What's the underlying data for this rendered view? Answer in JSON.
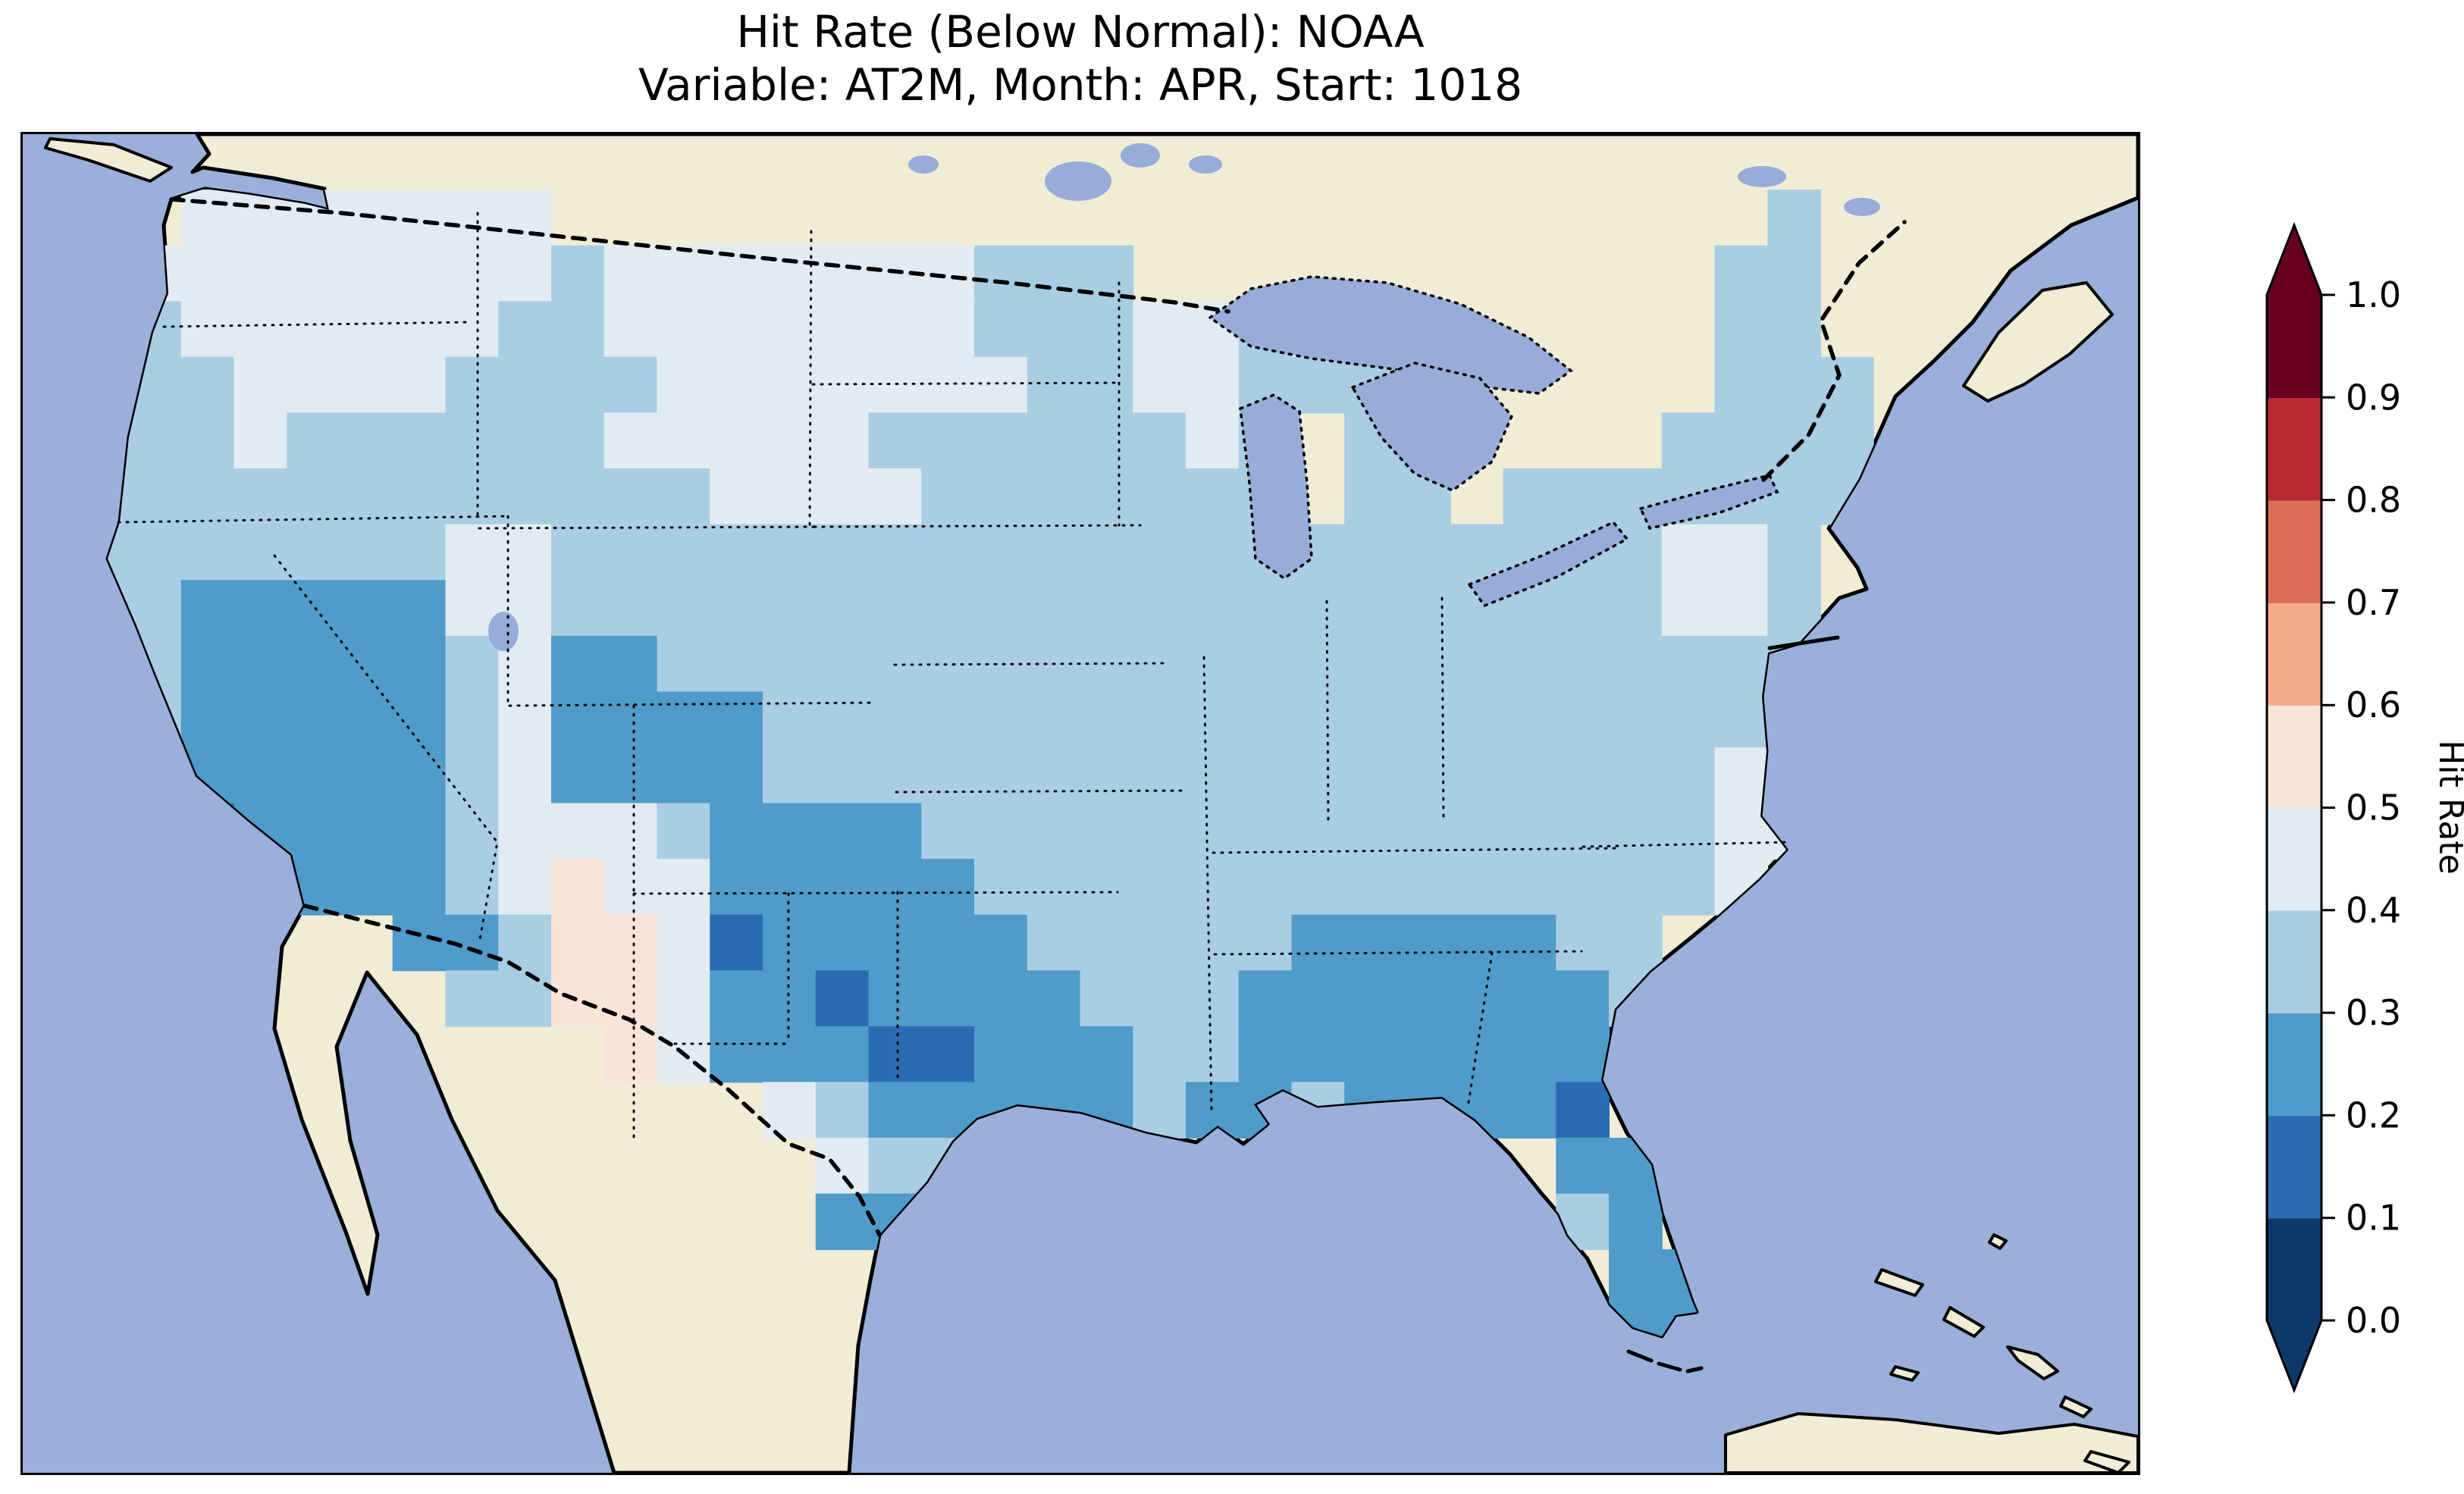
{
  "title": {
    "line1": "Hit Rate (Below Normal): NOAA",
    "line2": "Variable: AT2M, Month: APR, Start: 1018"
  },
  "map": {
    "ocean_color": "#9aafd9",
    "land_color": "#f0ecd6",
    "lake_color": "#97acd8",
    "coast_color": "#000000"
  },
  "colorbar": {
    "label": "Hit Rate",
    "ticks_top_to_bottom": [
      "1.0",
      "0.9",
      "0.8",
      "0.7",
      "0.6",
      "0.5",
      "0.4",
      "0.3",
      "0.2",
      "0.1",
      "0.0"
    ],
    "band_colors_bottom_to_top": [
      "#0b3a6a",
      "#2a6cb1",
      "#4f9bc9",
      "#a9cde3",
      "#e2ebf2",
      "#f9e5d8",
      "#f5ab88",
      "#dc6d57",
      "#ba2832",
      "#67001f"
    ],
    "under_arrow_color": "#0b3a6a",
    "over_arrow_color": "#67001f"
  },
  "chart_data": {
    "type": "heatmap",
    "title": "Hit Rate (Below Normal): NOAA",
    "subtitle": "Variable: AT2M, Month: APR, Start: 1018",
    "colorbar_label": "Hit Rate",
    "colorbar_ticks": [
      0.0,
      0.1,
      0.2,
      0.3,
      0.4,
      0.5,
      0.6,
      0.7,
      0.8,
      0.9,
      1.0
    ],
    "colorbar_extend": "both",
    "region": "Contiguous United States gridded hit-rate field; Canada, Mexico and islands shown as no-data land",
    "value_bins": {
      "0": "0.0-0.1",
      "1": "0.1-0.2",
      "2": "0.2-0.3",
      "3": "0.3-0.4",
      "4": "0.4-0.5",
      "5": "0.5-0.6",
      "6": "0.6-0.7",
      "7": "0.7-0.8",
      "8": "0.8-0.9",
      "9": "0.9-1.0"
    },
    "grid": {
      "cols": 40,
      "rows": 24,
      "no_data_char": ".",
      "note": "Each char is one cell over the map area, row 0 = north. Digit = hit-rate bin index (see value_bins).",
      "rows_data": [
        "........................................",
        "...4444444.......................3......",
        "..444444443444444433 3...........33.....",
        "..344444433444444433 3443........33.....",
        ".333444433334444444334433 3......333....",
        ".333433333344444333333 43.33....3333....",
        ".3333333333334444333333 3.33.3333333....",
        ".33333334433333333333333333333 3443.....",
        ".33222224433333333333333333333 3443.....",
        ".3322222342233333333333333333333 33.....",
        ".3322222342222333333333333333333 3......",
        "..3222223422223333333333333333334.......",
        "..3122223444322223333333333333334 4.....",
        "..3222223454422222333333333333334.......",
        ".......223554122222333332222233.........",
        "........33554221222233322222223.........",
        "...........542221122233222222 2.........",
        "..............432222232232222 1.........",
        "...............433...........2 2........",
        "...............22............3 2........",
        "..............................2 2.......",
        "..............................2 2.......",
        "..............................4 4.......",
        "........................................"
      ]
    }
  }
}
